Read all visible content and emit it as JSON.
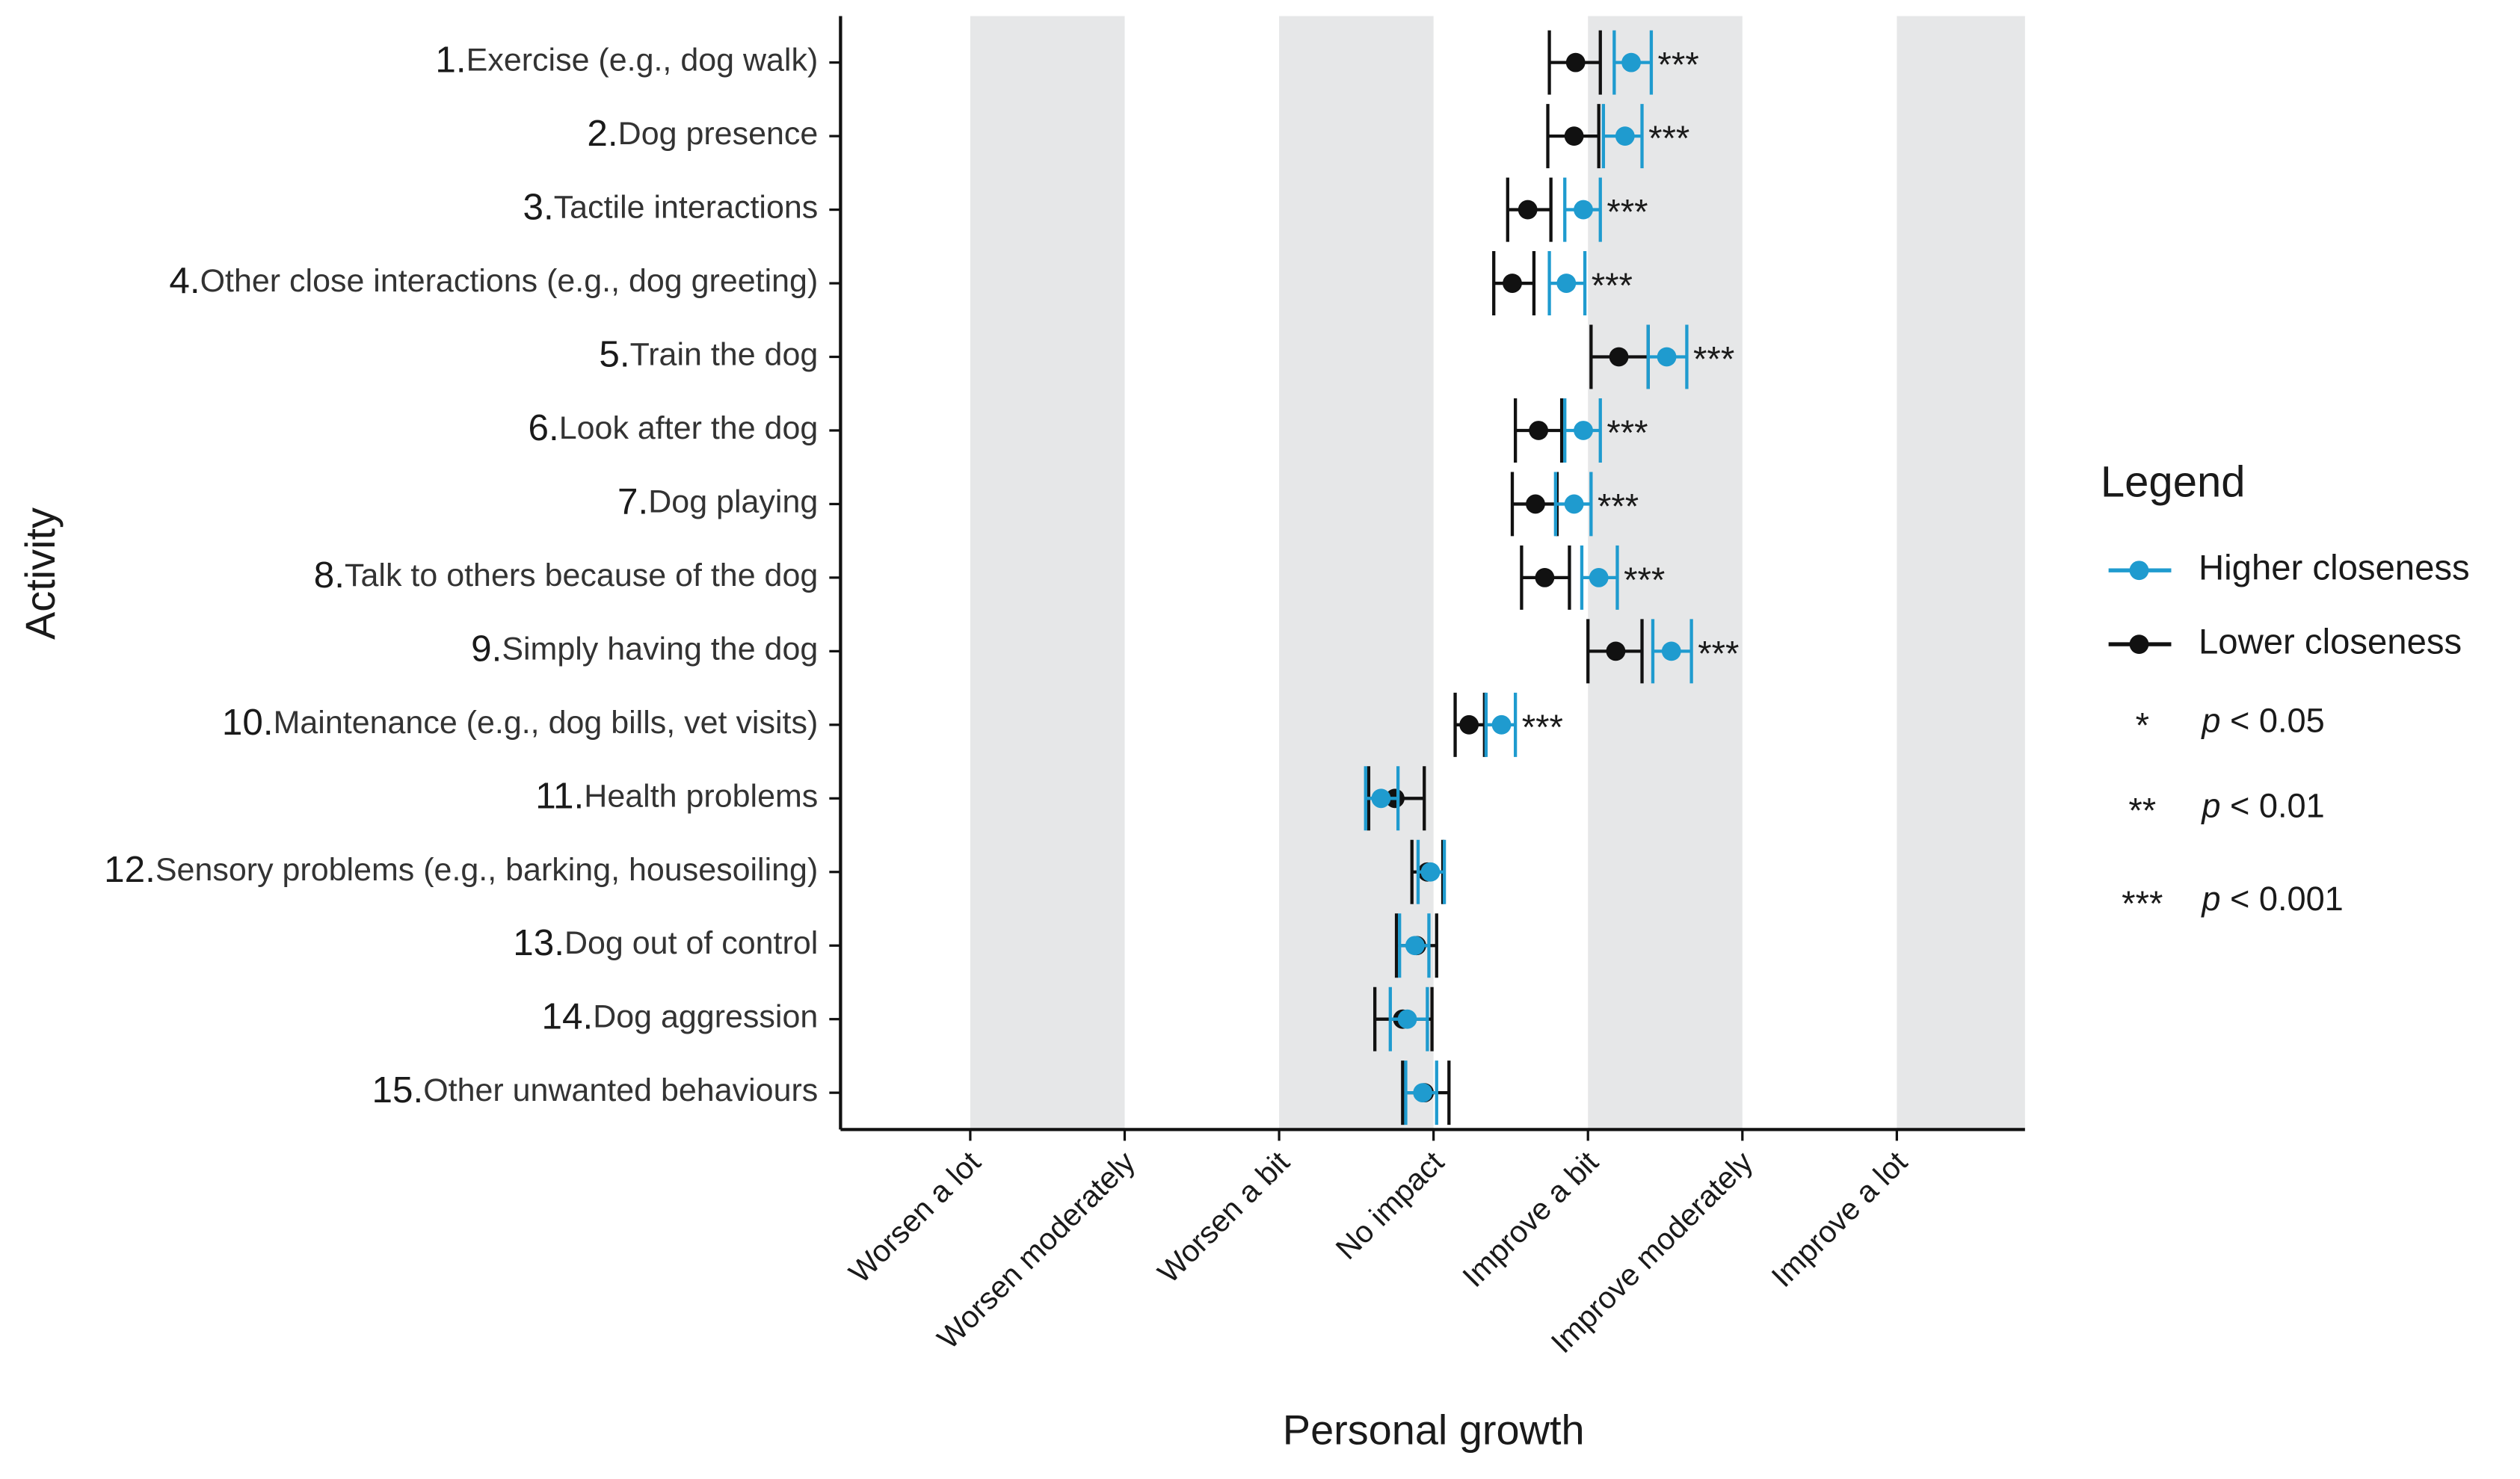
{
  "chart_data": {
    "type": "dot-whisker",
    "x_label": "Personal growth",
    "y_label": "Activity",
    "legend_title": "Legend",
    "category_numbers": [
      "1.",
      "2.",
      "3.",
      "4.",
      "5.",
      "6.",
      "7.",
      "8.",
      "9.",
      "10.",
      "11.",
      "12.",
      "13.",
      "14.",
      "15."
    ],
    "categories": [
      "Exercise (e.g., dog walk)",
      "Dog presence",
      "Tactile interactions",
      "Other close interactions (e.g., dog greeting)",
      "Train the dog",
      "Look after the dog",
      "Dog playing",
      "Talk to others because of the dog",
      "Simply having the dog",
      "Maintenance (e.g., dog bills, vet visits)",
      "Health problems",
      "Sensory problems (e.g., barking, housesoiling)",
      "Dog out of control",
      "Dog aggression",
      "Other unwanted behaviours"
    ],
    "series": [
      {
        "name": "Higher closeness",
        "color": "#1f9bcf",
        "values": [
          5.28,
          5.24,
          4.97,
          4.86,
          5.51,
          4.97,
          4.91,
          5.07,
          5.54,
          4.44,
          3.66,
          3.98,
          3.88,
          3.83,
          3.93
        ],
        "ci_low": [
          5.17,
          5.1,
          4.85,
          4.75,
          5.39,
          4.85,
          4.79,
          4.96,
          5.42,
          4.34,
          3.56,
          3.9,
          3.78,
          3.72,
          3.82
        ],
        "ci_high": [
          5.41,
          5.35,
          5.08,
          4.98,
          5.64,
          5.08,
          5.02,
          5.19,
          5.67,
          4.53,
          3.77,
          4.07,
          3.97,
          3.96,
          4.02
        ]
      },
      {
        "name": "Lower closeness",
        "color": "#111111",
        "values": [
          4.92,
          4.91,
          4.61,
          4.51,
          5.2,
          4.68,
          4.66,
          4.72,
          5.18,
          4.23,
          3.75,
          3.96,
          3.89,
          3.8,
          3.94
        ],
        "ci_low": [
          4.75,
          4.74,
          4.48,
          4.39,
          5.02,
          4.53,
          4.51,
          4.57,
          5.0,
          4.14,
          3.58,
          3.86,
          3.76,
          3.62,
          3.8
        ],
        "ci_high": [
          5.08,
          5.07,
          4.76,
          4.65,
          5.39,
          4.83,
          4.8,
          4.88,
          5.35,
          4.33,
          3.94,
          4.06,
          4.02,
          3.99,
          4.1
        ]
      }
    ],
    "significance": [
      "***",
      "***",
      "***",
      "***",
      "***",
      "***",
      "***",
      "***",
      "***",
      "***",
      null,
      null,
      null,
      null,
      null
    ],
    "significance_key": [
      {
        "symbol": "*",
        "variable": "p",
        "threshold": "< 0.05"
      },
      {
        "symbol": "**",
        "variable": "p",
        "threshold": "< 0.01"
      },
      {
        "symbol": "***",
        "variable": "p",
        "threshold": "< 0.001"
      }
    ],
    "xlim": [
      0.16,
      7.83
    ],
    "xticks": [
      {
        "value": 1,
        "label": "Worsen a lot"
      },
      {
        "value": 2,
        "label": "Worsen moderately"
      },
      {
        "value": 3,
        "label": "Worsen a bit"
      },
      {
        "value": 4,
        "label": "No impact"
      },
      {
        "value": 5,
        "label": "Improve a bit"
      },
      {
        "value": 6,
        "label": "Improve moderately"
      },
      {
        "value": 7,
        "label": "Improve a lot"
      }
    ],
    "shaded_bands": true
  }
}
